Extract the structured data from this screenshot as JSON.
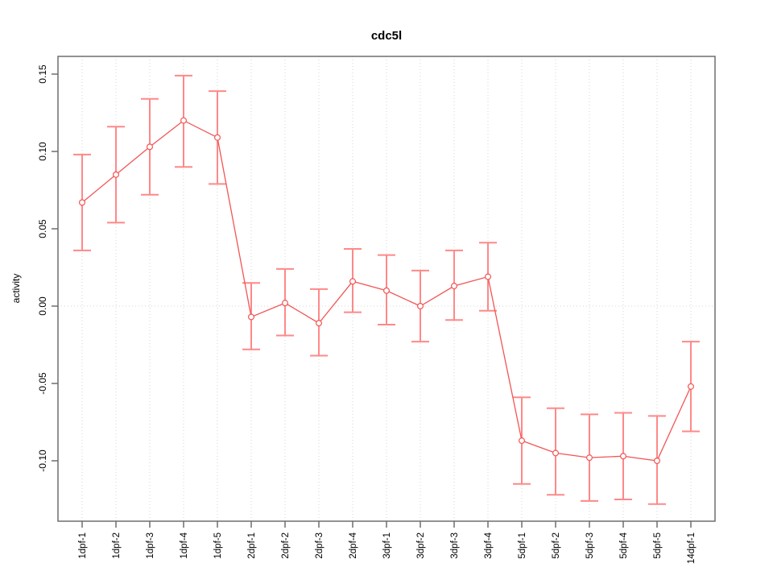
{
  "chart_data": {
    "type": "line",
    "title": "cdc5l",
    "xlabel": "",
    "ylabel": "activity",
    "legend_position": "none",
    "marker": "open-circle",
    "error_bars": true,
    "grid": {
      "vertical": "dotted line at every category",
      "horizontal": "dotted line at y=0 only"
    },
    "ylim": [
      -0.139,
      0.161
    ],
    "y_ticks": [
      {
        "value": 0.15,
        "label": "0.15"
      },
      {
        "value": 0.1,
        "label": "0.10"
      },
      {
        "value": 0.05,
        "label": "0.05"
      },
      {
        "value": 0.0,
        "label": "0.00"
      },
      {
        "value": -0.05,
        "label": "-0.05"
      },
      {
        "value": -0.1,
        "label": "-0.10"
      }
    ],
    "categories": [
      "1dpf-1",
      "1dpf-2",
      "1dpf-3",
      "1dpf-4",
      "1dpf-5",
      "2dpf-1",
      "2dpf-2",
      "2dpf-3",
      "2dpf-4",
      "3dpf-1",
      "3dpf-2",
      "3dpf-3",
      "3dpf-4",
      "5dpf-1",
      "5dpf-2",
      "5dpf-3",
      "5dpf-4",
      "5dpf-5",
      "14dpf-1"
    ],
    "series": [
      {
        "name": "cdc5l activity",
        "values": [
          0.067,
          0.085,
          0.103,
          0.12,
          0.109,
          -0.007,
          0.002,
          -0.011,
          0.016,
          0.01,
          0.0,
          0.013,
          0.019,
          -0.087,
          -0.095,
          -0.098,
          -0.097,
          -0.1,
          -0.052
        ],
        "ci_low": [
          0.036,
          0.054,
          0.072,
          0.09,
          0.079,
          -0.028,
          -0.019,
          -0.032,
          -0.004,
          -0.012,
          -0.023,
          -0.009,
          -0.003,
          -0.115,
          -0.122,
          -0.126,
          -0.125,
          -0.128,
          -0.081
        ],
        "ci_high": [
          0.098,
          0.116,
          0.134,
          0.149,
          0.139,
          0.015,
          0.024,
          0.011,
          0.037,
          0.033,
          0.023,
          0.036,
          0.041,
          -0.059,
          -0.066,
          -0.07,
          -0.069,
          -0.071,
          -0.023
        ]
      }
    ],
    "colors": {
      "error_bar": "#ff8888",
      "line": "#f25555",
      "marker_stroke": "#f25555",
      "marker_fill": "#ffffff",
      "grid": "#d6d6d6",
      "axis": "#6e6e6e",
      "text": "#000000",
      "background": "#ffffff"
    }
  }
}
